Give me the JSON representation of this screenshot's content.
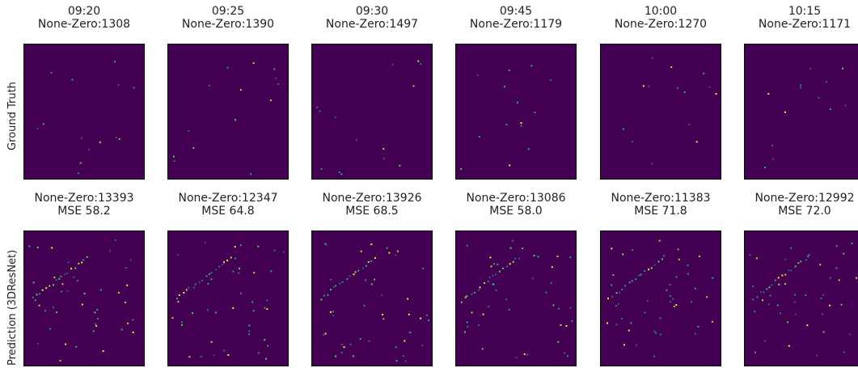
{
  "chart_data": {
    "type": "heatmap",
    "colormap": "viridis",
    "rows": [
      {
        "label": "Ground Truth"
      },
      {
        "label": "Prediction (3DResNet)"
      }
    ],
    "panels": [
      {
        "time": "09:20",
        "gt_nonzero": "None-Zero:1308",
        "pred_nonzero": "None-Zero:13393",
        "pred_mse": "MSE 58.2"
      },
      {
        "time": "09:25",
        "gt_nonzero": "None-Zero:1390",
        "pred_nonzero": "None-Zero:12347",
        "pred_mse": "MSE 64.8"
      },
      {
        "time": "09:30",
        "gt_nonzero": "None-Zero:1497",
        "pred_nonzero": "None-Zero:13926",
        "pred_mse": "MSE 68.5"
      },
      {
        "time": "09:45",
        "gt_nonzero": "None-Zero:1179",
        "pred_nonzero": "None-Zero:13086",
        "pred_mse": "MSE 58.0"
      },
      {
        "time": "10:00",
        "gt_nonzero": "None-Zero:1270",
        "pred_nonzero": "None-Zero:11383",
        "pred_mse": "MSE 71.8"
      },
      {
        "time": "10:15",
        "gt_nonzero": "None-Zero:1171",
        "pred_nonzero": "None-Zero:12992",
        "pred_mse": "MSE 72.0"
      }
    ]
  }
}
